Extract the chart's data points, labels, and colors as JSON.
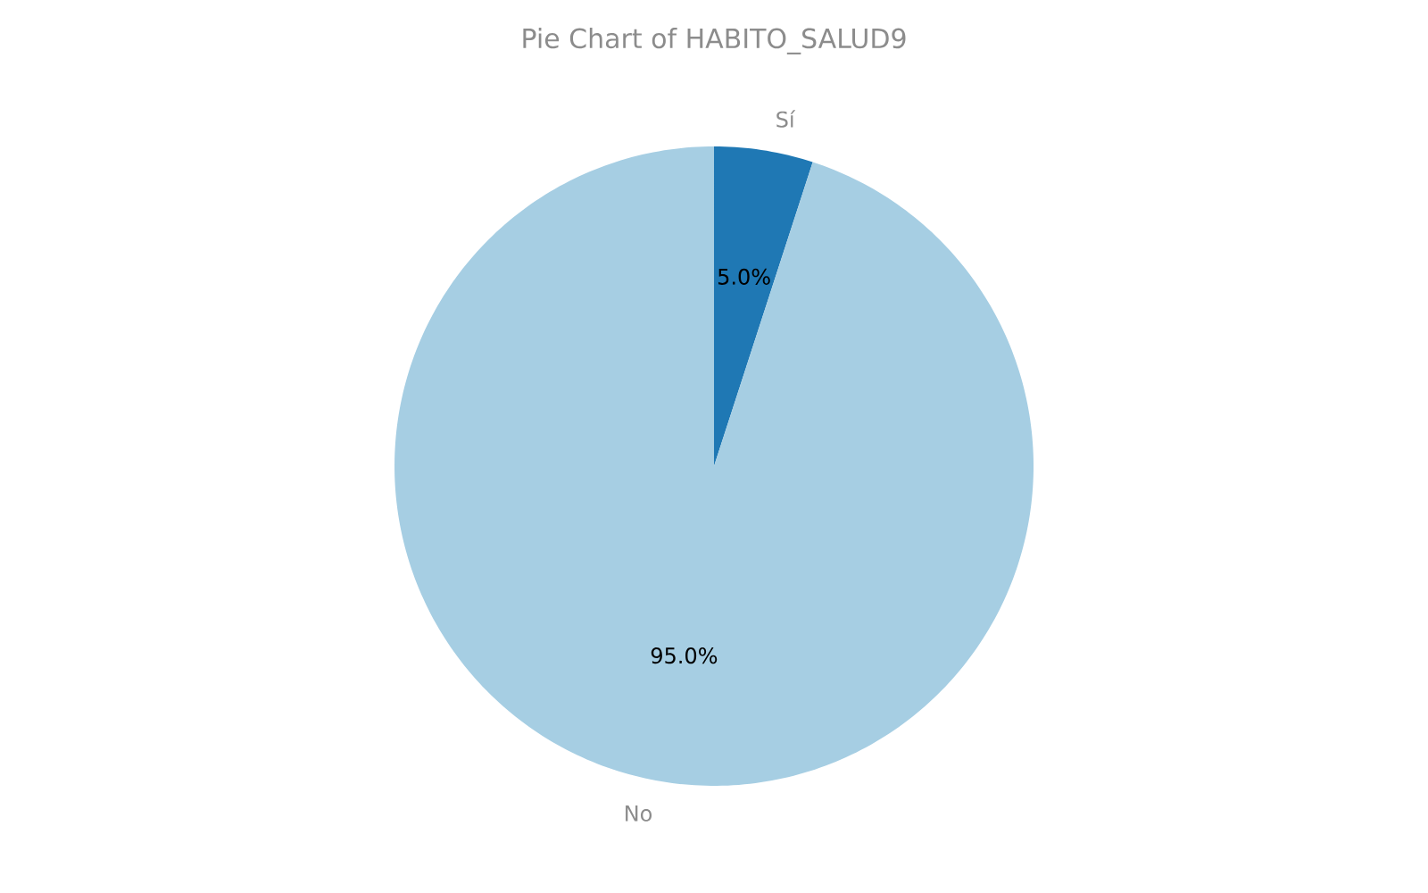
{
  "chart_data": {
    "type": "pie",
    "title": "Pie Chart of HABITO_SALUD9",
    "categories": [
      "Sí",
      "No"
    ],
    "values": [
      5.0,
      95.0
    ],
    "colors": [
      "#1f78b4",
      "#a6cee3"
    ],
    "value_labels": [
      "5.0%",
      "95.0%"
    ]
  }
}
